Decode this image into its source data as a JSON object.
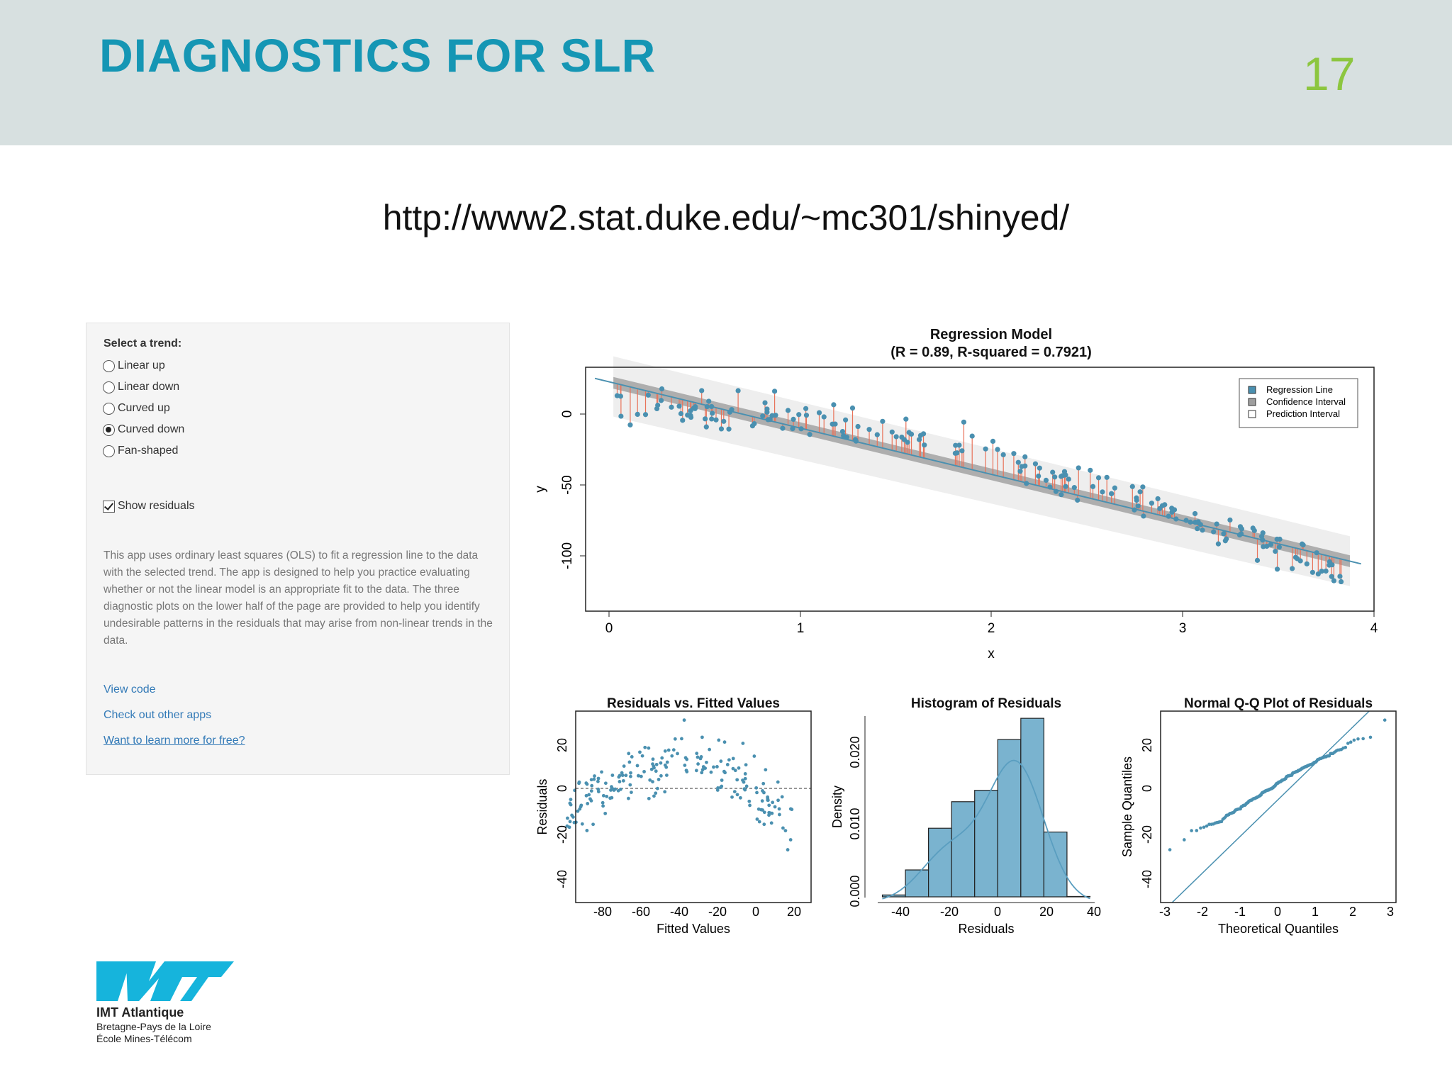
{
  "slide": {
    "title": "DIAGNOSTICS FOR SLR",
    "number": "17",
    "url": "http://www2.stat.duke.edu/~mc301/shinyed/"
  },
  "colors": {
    "header_bg": "#d7e0e0",
    "title": "#1596b4",
    "slide_number": "#8cc63f",
    "point": "#4a90b0",
    "residual_line": "#e8735a",
    "hist_bar": "#7ab3cf",
    "link": "#337ab7",
    "logo": "#16b4dc"
  },
  "app": {
    "trend_label": "Select a trend:",
    "trends": [
      {
        "label": "Linear up",
        "selected": false
      },
      {
        "label": "Linear down",
        "selected": false
      },
      {
        "label": "Curved up",
        "selected": false
      },
      {
        "label": "Curved down",
        "selected": true
      },
      {
        "label": "Fan-shaped",
        "selected": false
      }
    ],
    "show_residuals": {
      "label": "Show residuals",
      "checked": true
    },
    "description": "This app uses ordinary least squares (OLS) to fit a regression line to the data with the selected trend. The app is designed to help you practice evaluating whether or not the linear model is an appropriate fit to the data. The three diagnostic plots on the lower half of the page are provided to help you identify undesirable patterns in the residuals that may arise from non-linear trends in the data.",
    "links": {
      "view_code": "View code",
      "other_apps": "Check out other apps",
      "learn_more": "Want to learn more for free?"
    }
  },
  "chart_data": [
    {
      "type": "scatter",
      "title": "Regression Model",
      "subtitle": "(R = 0.89, R-squared = 0.7921)",
      "xlabel": "x",
      "ylabel": "y",
      "xlim": [
        -0.13,
        4.13
      ],
      "ylim": [
        -138,
        28
      ],
      "xticks": [
        "0",
        "1",
        "2",
        "3",
        "4"
      ],
      "yticks": [
        "0",
        "-50",
        "-100"
      ],
      "regression_line": {
        "intercept": 18,
        "slope": -30.5
      },
      "legend": [
        "Regression Line",
        "Confidence Interval",
        "Prediction Interval"
      ],
      "legend_position": "top-right",
      "show_residuals": true,
      "points_approx": "about 200 points scattered along the fitted line with curved-down pattern"
    },
    {
      "type": "scatter",
      "title": "Residuals vs. Fitted Values",
      "xlabel": "Fitted Values",
      "ylabel": "Residuals",
      "xlim": [
        -98,
        27
      ],
      "ylim": [
        -49,
        35
      ],
      "xticks": [
        "-80",
        "-60",
        "-40",
        "-20",
        "0",
        "20"
      ],
      "yticks": [
        "20",
        "0",
        "-20",
        "-40"
      ],
      "reference_line": 0
    },
    {
      "type": "bar",
      "title": "Histogram of Residuals",
      "xlabel": "Residuals",
      "ylabel": "Density",
      "bins": [
        {
          "from": -50,
          "to": -40,
          "density": 0.001
        },
        {
          "from": -40,
          "to": -30,
          "density": 0.0043
        },
        {
          "from": -30,
          "to": -20,
          "density": 0.0098
        },
        {
          "from": -20,
          "to": -10,
          "density": 0.0133
        },
        {
          "from": -10,
          "to": 0,
          "density": 0.0148
        },
        {
          "from": 0,
          "to": 10,
          "density": 0.0215
        },
        {
          "from": 10,
          "to": 20,
          "density": 0.0243
        },
        {
          "from": 20,
          "to": 30,
          "density": 0.0093
        },
        {
          "from": 30,
          "to": 40,
          "density": 0.0008
        }
      ],
      "xlim": [
        -52,
        42
      ],
      "ylim": [
        0,
        0.0245
      ],
      "xticks": [
        "-40",
        "-20",
        "0",
        "20",
        "40"
      ],
      "yticks": [
        "0.000",
        "0.010",
        "0.020"
      ]
    },
    {
      "type": "scatter",
      "title": "Normal Q-Q Plot of Residuals",
      "xlabel": "Theoretical Quantiles",
      "ylabel": "Sample Quantiles",
      "xlim": [
        -3.05,
        3.1
      ],
      "ylim": [
        -49,
        35
      ],
      "xticks": [
        "-3",
        "-2",
        "-1",
        "0",
        "1",
        "2",
        "3"
      ],
      "yticks": [
        "20",
        "0",
        "-20",
        "-40"
      ]
    }
  ],
  "logo": {
    "name": "IMT Atlantique",
    "line1": "Bretagne-Pays de la Loire",
    "line2": "École Mines-Télécom"
  }
}
